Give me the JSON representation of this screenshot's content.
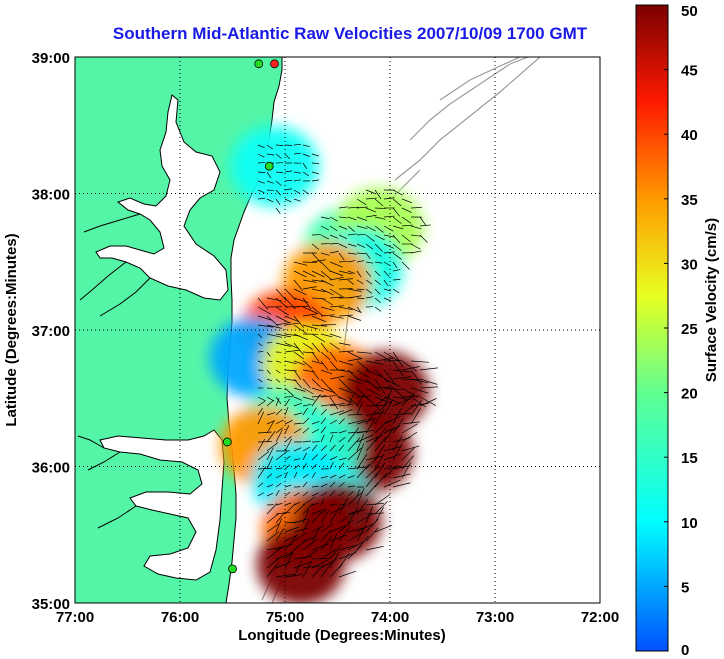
{
  "title": "Southern Mid-Atlantic Raw Velocities 2007/10/09 1700 GMT",
  "xlabel": "Longitude (Degrees:Minutes)",
  "ylabel": "Latitude (Degrees:Minutes)",
  "colorbar_label": "Surface Velocity (cm/s)",
  "x_ticks": [
    "77:00",
    "76:00",
    "75:00",
    "74:00",
    "73:00",
    "72:00"
  ],
  "y_ticks": [
    "39:00",
    "38:00",
    "37:00",
    "36:00",
    "35:00"
  ],
  "colorbar_ticks": [
    "50",
    "45",
    "40",
    "35",
    "30",
    "25",
    "20",
    "15",
    "10",
    "5",
    "0"
  ],
  "colors": {
    "land": "#55f5a8",
    "coast": "#000000",
    "grid": "#000000",
    "title": "#1a1ae6",
    "bathymetry": "#9a9a9a",
    "station": "#22dd22"
  },
  "chart_data": {
    "type": "heatmap",
    "title": "Southern Mid-Atlantic Raw Velocities 2007/10/09 1700 GMT",
    "xlabel": "Longitude (Degrees:Minutes)",
    "ylabel": "Latitude (Degrees:Minutes)",
    "xlim": [
      -77,
      -72
    ],
    "ylim": [
      35,
      39
    ],
    "colorbar": {
      "label": "Surface Velocity (cm/s)",
      "range": [
        0,
        50
      ],
      "colormap": "jet"
    },
    "grid": true,
    "regions": [
      {
        "lon": -75.1,
        "lat": 38.2,
        "speed": 11
      },
      {
        "lon": -74.4,
        "lat": 37.6,
        "speed": 17
      },
      {
        "lon": -74.1,
        "lat": 37.75,
        "speed": 24
      },
      {
        "lon": -74.3,
        "lat": 37.45,
        "speed": 12
      },
      {
        "lon": -74.6,
        "lat": 37.35,
        "speed": 35
      },
      {
        "lon": -75.0,
        "lat": 37.0,
        "speed": 40
      },
      {
        "lon": -75.3,
        "lat": 36.8,
        "speed": 5
      },
      {
        "lon": -74.8,
        "lat": 36.75,
        "speed": 28
      },
      {
        "lon": -74.5,
        "lat": 36.6,
        "speed": 38
      },
      {
        "lon": -74.05,
        "lat": 36.55,
        "speed": 50
      },
      {
        "lon": -74.2,
        "lat": 36.1,
        "speed": 50
      },
      {
        "lon": -75.0,
        "lat": 36.3,
        "speed": 16
      },
      {
        "lon": -74.7,
        "lat": 36.15,
        "speed": 14
      },
      {
        "lon": -75.2,
        "lat": 36.15,
        "speed": 35
      },
      {
        "lon": -74.6,
        "lat": 35.75,
        "speed": 11
      },
      {
        "lon": -74.9,
        "lat": 35.9,
        "speed": 9
      },
      {
        "lon": -74.8,
        "lat": 35.55,
        "speed": 38
      },
      {
        "lon": -74.5,
        "lat": 35.6,
        "speed": 50
      },
      {
        "lon": -74.85,
        "lat": 35.28,
        "speed": 50
      }
    ],
    "stations": [
      {
        "lon": -75.1,
        "lat": 38.95,
        "color": "#ff2020"
      },
      {
        "lon": -75.25,
        "lat": 38.95,
        "color": "#22dd22"
      },
      {
        "lon": -75.15,
        "lat": 38.2,
        "color": "#22dd22"
      },
      {
        "lon": -75.55,
        "lat": 36.18,
        "color": "#22dd22"
      },
      {
        "lon": -75.5,
        "lat": 35.25,
        "color": "#22dd22"
      }
    ]
  }
}
